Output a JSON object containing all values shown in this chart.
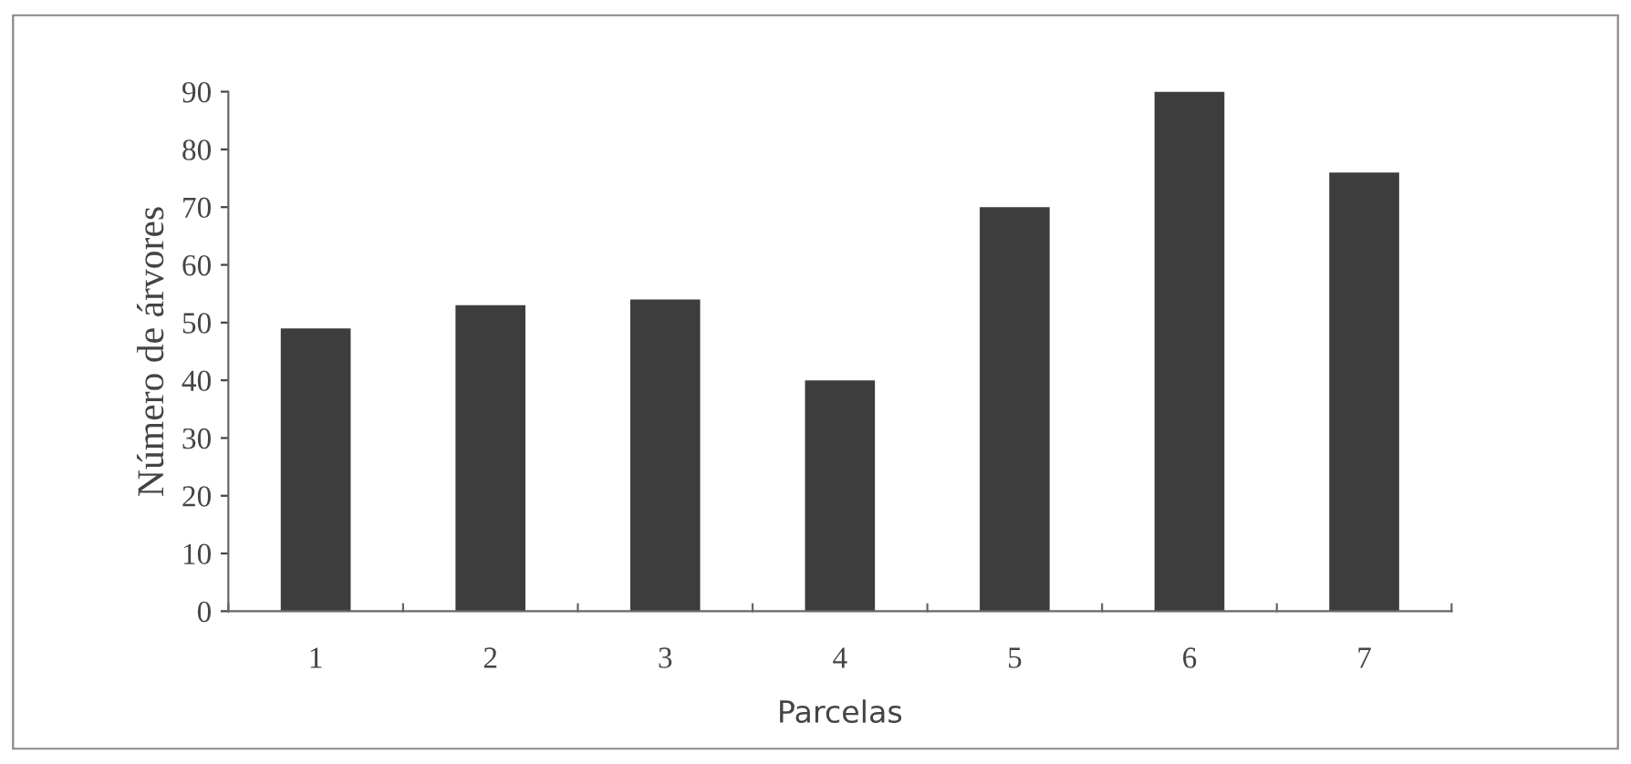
{
  "chart_data": {
    "type": "bar",
    "xlabel": "Parcelas",
    "ylabel": "Número de árvores",
    "categories": [
      "1",
      "2",
      "3",
      "4",
      "5",
      "6",
      "7"
    ],
    "values": [
      49,
      53,
      54,
      40,
      70,
      90,
      76
    ],
    "color": "#3d3d3d",
    "ylim": [
      0,
      90
    ],
    "yticks": [
      0,
      10,
      20,
      30,
      40,
      50,
      60,
      70,
      80,
      90
    ],
    "grid": false
  }
}
